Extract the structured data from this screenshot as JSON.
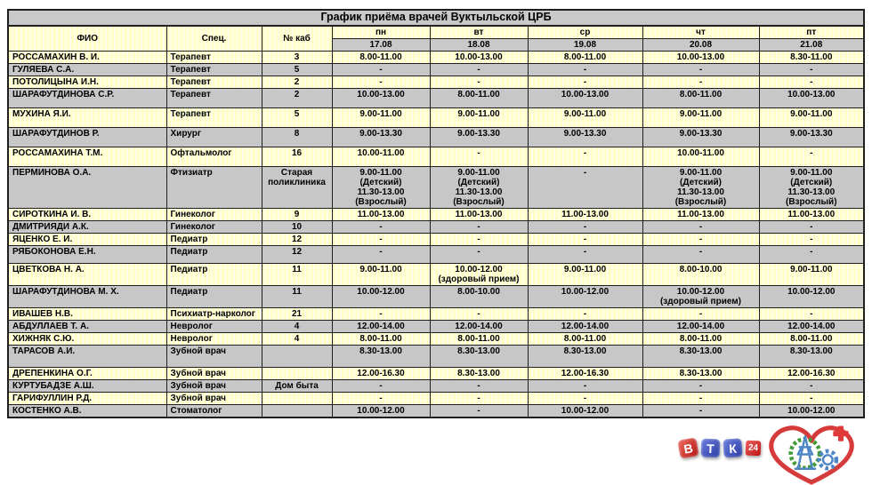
{
  "title": "График приёма врачей Вуктыльской ЦРБ",
  "table": {
    "columns": {
      "fio": "ФИО",
      "spec": "Спец.",
      "kab": "№ каб"
    },
    "days": [
      {
        "label": "пн",
        "date": "17.08"
      },
      {
        "label": "вт",
        "date": "18.08"
      },
      {
        "label": "ср",
        "date": "19.08"
      },
      {
        "label": "чт",
        "date": "20.08"
      },
      {
        "label": "пт",
        "date": "21.08"
      }
    ],
    "rows": [
      {
        "fio": "РОССАМАХИН В. И.",
        "spec": "Терапевт",
        "kab": "3",
        "schedule": [
          "8.00-11.00",
          "10.00-13.00",
          "8.00-11.00",
          "10.00-13.00",
          "8.30-11.00"
        ]
      },
      {
        "fio": "ГУЛЯЕВА С.А.",
        "spec": "Терапевт",
        "kab": "5",
        "schedule": [
          "-",
          "-",
          "-",
          "-",
          "-"
        ]
      },
      {
        "fio": "ПОТОЛИЦЫНА И.Н.",
        "spec": "Терапевт",
        "kab": "2",
        "schedule": [
          "-",
          "-",
          "-",
          "-",
          "-"
        ]
      },
      {
        "fio": "ШАРАФУТДИНОВА С.Р.",
        "spec": "Терапевт",
        "kab": "2",
        "schedule": [
          "10.00-13.00",
          "8.00-11.00",
          "10.00-13.00",
          "8.00-11.00",
          "10.00-13.00"
        ]
      },
      {
        "fio": "МУХИНА Я.И.",
        "spec": "Терапевт",
        "kab": "5",
        "schedule": [
          "9.00-11.00",
          "9.00-11.00",
          "9.00-11.00",
          "9.00-11.00",
          "9.00-11.00"
        ]
      },
      {
        "fio": "ШАРАФУТДИНОВ Р.",
        "spec": "Хирург",
        "kab": "8",
        "schedule": [
          "9.00-13.30",
          "9.00-13.30",
          "9.00-13.30",
          "9.00-13.30",
          "9.00-13.30"
        ]
      },
      {
        "fio": "РОССАМАХИНА Т.М.",
        "spec": "Офтальмолог",
        "kab": "16",
        "schedule": [
          "10.00-11.00",
          "-",
          "-",
          "10.00-11.00",
          "-"
        ]
      },
      {
        "fio": "ПЕРМИНОВА О.А.",
        "spec": "Фтизиатр",
        "kab": "Старая\nполиклиника",
        "schedule": [
          "9.00-11.00\n(Детский)\n11.30-13.00\n(Взрослый)",
          "9.00-11.00\n(Детский)\n11.30-13.00\n(Взрослый)",
          "-",
          "9.00-11.00\n(Детский)\n11.30-13.00\n(Взрослый)",
          "9.00-11.00\n(Детский)\n11.30-13.00\n(Взрослый)"
        ]
      },
      {
        "fio": "СИРОТКИНА И. В.",
        "spec": "Гинеколог",
        "kab": "9",
        "schedule": [
          "11.00-13.00",
          "11.00-13.00",
          "11.00-13.00",
          "11.00-13.00",
          "11.00-13.00"
        ]
      },
      {
        "fio": "ДМИТРИЯДИ А.К.",
        "spec": "Гинеколог",
        "kab": "10",
        "schedule": [
          "-",
          "-",
          "-",
          "-",
          "-"
        ]
      },
      {
        "fio": "ЯЦЕНКО Е. И.",
        "spec": "Педиатр",
        "kab": "12",
        "schedule": [
          "-",
          "-",
          "-",
          "-",
          "-"
        ]
      },
      {
        "fio": "РЯБОКОНОВА Е.Н.",
        "spec": "Педиатр",
        "kab": "12",
        "schedule": [
          "-",
          "-",
          "-",
          "-",
          "-"
        ]
      },
      {
        "fio": "ЦВЕТКОВА Н. А.",
        "spec": "Педиатр",
        "kab": "11",
        "schedule": [
          "9.00-11.00",
          "10.00-12.00\n(здоровый прием)",
          "9.00-11.00",
          "8.00-10.00",
          "9.00-11.00"
        ]
      },
      {
        "fio": "ШАРАФУТДИНОВА М. Х.",
        "spec": "Педиатр",
        "kab": "11",
        "schedule": [
          "10.00-12.00",
          "8.00-10.00",
          "10.00-12.00",
          "10.00-12.00\n(здоровый прием)",
          "10.00-12.00"
        ]
      },
      {
        "fio": "ИВАШЕВ Н.В.",
        "spec": "Психиатр-нарколог",
        "kab": "21",
        "schedule": [
          "-",
          "-",
          "-",
          "-",
          "-"
        ]
      },
      {
        "fio": "АБДУЛЛАЕВ Т. А.",
        "spec": "Невролог",
        "kab": "4",
        "schedule": [
          "12.00-14.00",
          "12.00-14.00",
          "12.00-14.00",
          "12.00-14.00",
          "12.00-14.00"
        ]
      },
      {
        "fio": "ХИЖНЯК С.Ю.",
        "spec": "Невролог",
        "kab": "4",
        "schedule": [
          "8.00-11.00",
          "8.00-11.00",
          "8.00-11.00",
          "8.00-11.00",
          "8.00-11.00"
        ]
      },
      {
        "fio": "ТАРАСОВ А.И.",
        "spec": "Зубной врач",
        "kab": "",
        "schedule": [
          "8.30-13.00",
          "8.30-13.00",
          "8.30-13.00",
          "8.30-13.00",
          "8.30-13.00"
        ]
      },
      {
        "fio": "ДРЕПЕНКИНА О.Г.",
        "spec": "Зубной врач",
        "kab": "",
        "schedule": [
          "12.00-16.30",
          "8.30-13.00",
          "12.00-16.30",
          "8.30-13.00",
          "12.00-16.30"
        ]
      },
      {
        "fio": "КУРТУБАДЗЕ А.Ш.",
        "spec": "Зубной врач",
        "kab": "Дом быта",
        "schedule": [
          "-",
          "-",
          "-",
          "-",
          "-"
        ]
      },
      {
        "fio": "ГАРИФУЛЛИН Р.Д.",
        "spec": "Зубной врач",
        "kab": "",
        "schedule": [
          "-",
          "-",
          "-",
          "-",
          "-"
        ]
      },
      {
        "fio": "КОСТЕНКО А.В.",
        "spec": "Стоматолог",
        "kab": "",
        "schedule": [
          "10.00-12.00",
          "-",
          "10.00-12.00",
          "-",
          "10.00-12.00"
        ]
      }
    ]
  },
  "logos": {
    "vtk": {
      "letters": [
        "В",
        "Т",
        "К"
      ],
      "badge": "24"
    }
  },
  "colors": {
    "row_yellow": "#ffffc6",
    "row_gray": "#c7c7c7",
    "header_gray": "#c9c9c9",
    "border": "#1f1f1f",
    "vtk_red": "#b01312",
    "vtk_blue": "#2b3aa0",
    "heart_red": "#d63b3b",
    "wreath_green": "#3f9b36",
    "tower_blue": "#4e86c6"
  }
}
